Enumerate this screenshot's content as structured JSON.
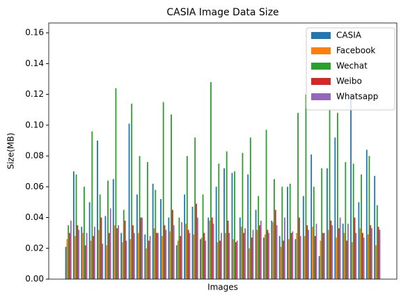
{
  "chart_data": {
    "type": "bar",
    "title": "CASIA Image Data Size",
    "xlabel": "Images",
    "ylabel": "Size(MB)",
    "categories": [
      null,
      null,
      null,
      null,
      null,
      null,
      null,
      null,
      null,
      null,
      null,
      null,
      null,
      null,
      null,
      null,
      null,
      null,
      null,
      null,
      null,
      null,
      null,
      null,
      null,
      null,
      null,
      null,
      null,
      null,
      null,
      null,
      null,
      null,
      null,
      null,
      null,
      null,
      null,
      null
    ],
    "series": [
      {
        "name": "CASIA",
        "color": "#1f77b4",
        "values": [
          0.021,
          0.07,
          0.034,
          0.05,
          0.09,
          0.041,
          0.065,
          0.03,
          0.101,
          0.055,
          0.029,
          0.062,
          0.052,
          0.04,
          0.022,
          0.055,
          0.047,
          0.026,
          0.04,
          0.06,
          0.072,
          0.069,
          0.04,
          0.068,
          0.045,
          0.027,
          0.038,
          0.028,
          0.06,
          0.026,
          0.054,
          0.081,
          0.015,
          0.072,
          0.092,
          0.036,
          0.12,
          0.05,
          0.084,
          0.067
        ]
      },
      {
        "name": "Facebook",
        "color": "#ff7f0e",
        "values": [
          0.026,
          0.028,
          0.03,
          0.025,
          0.032,
          0.022,
          0.035,
          0.024,
          0.026,
          0.03,
          0.02,
          0.033,
          0.028,
          0.031,
          0.025,
          0.036,
          0.029,
          0.027,
          0.038,
          0.024,
          0.03,
          0.026,
          0.034,
          0.02,
          0.032,
          0.029,
          0.037,
          0.021,
          0.026,
          0.03,
          0.028,
          0.034,
          0.025,
          0.032,
          0.027,
          0.03,
          0.024,
          0.033,
          0.029,
          0.022
        ]
      },
      {
        "name": "Wechat",
        "color": "#2ca02c",
        "values": [
          0.035,
          0.068,
          0.06,
          0.096,
          0.055,
          0.064,
          0.124,
          0.045,
          0.114,
          0.08,
          0.076,
          0.058,
          0.115,
          0.107,
          0.04,
          0.08,
          0.092,
          0.055,
          0.128,
          0.075,
          0.083,
          0.07,
          0.082,
          0.092,
          0.054,
          0.097,
          0.065,
          0.06,
          0.062,
          0.108,
          0.12,
          0.06,
          0.072,
          0.11,
          0.108,
          0.076,
          0.075,
          0.068,
          0.08,
          0.048
        ]
      },
      {
        "name": "Weibo",
        "color": "#d62728",
        "values": [
          0.03,
          0.035,
          0.022,
          0.028,
          0.04,
          0.03,
          0.033,
          0.038,
          0.035,
          0.04,
          0.025,
          0.03,
          0.035,
          0.045,
          0.028,
          0.032,
          0.049,
          0.03,
          0.04,
          0.025,
          0.038,
          0.024,
          0.03,
          0.027,
          0.035,
          0.032,
          0.045,
          0.025,
          0.03,
          0.04,
          0.035,
          0.028,
          0.03,
          0.038,
          0.033,
          0.025,
          0.04,
          0.03,
          0.035,
          0.034
        ]
      },
      {
        "name": "Whatsapp",
        "color": "#9467bd",
        "values": [
          0.038,
          0.032,
          0.03,
          0.034,
          0.023,
          0.046,
          0.035,
          0.025,
          0.03,
          0.04,
          0.028,
          0.03,
          0.032,
          0.035,
          0.037,
          0.03,
          0.04,
          0.025,
          0.036,
          0.03,
          0.03,
          0.025,
          0.033,
          0.032,
          0.038,
          0.03,
          0.035,
          0.04,
          0.031,
          0.028,
          0.032,
          0.036,
          0.03,
          0.035,
          0.04,
          0.036,
          0.03,
          0.027,
          0.033,
          0.032
        ]
      }
    ],
    "ylim": [
      0,
      0.1664
    ],
    "yticks": [
      {
        "value": 0,
        "label": "0.00"
      },
      {
        "value": 0.02,
        "label": "0.02"
      },
      {
        "value": 0.04,
        "label": "0.04"
      },
      {
        "value": 0.06,
        "label": "0.06"
      },
      {
        "value": 0.08,
        "label": "0.08"
      },
      {
        "value": 0.1,
        "label": "0.10"
      },
      {
        "value": 0.12,
        "label": "0.12"
      },
      {
        "value": 0.14,
        "label": "0.14"
      },
      {
        "value": 0.16,
        "label": "0.16"
      }
    ],
    "legend": "upper right"
  }
}
